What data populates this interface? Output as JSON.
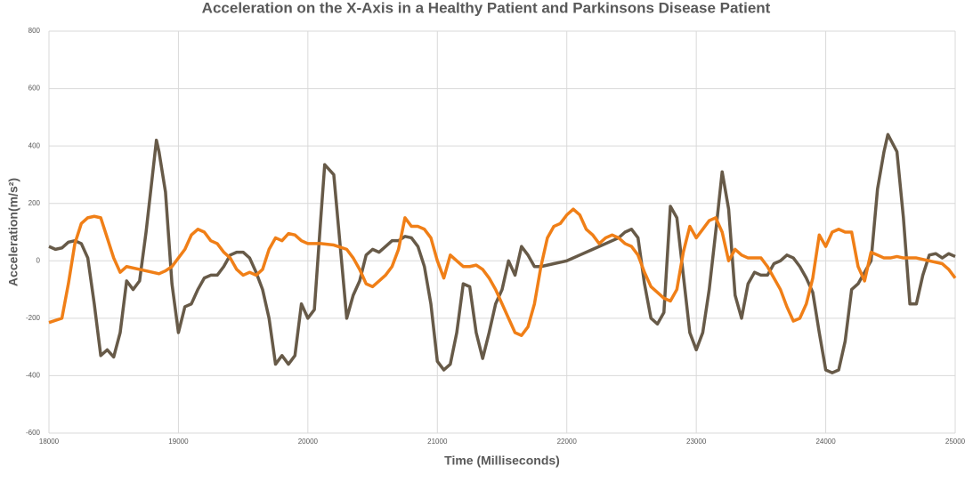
{
  "chart_data": {
    "type": "line",
    "title": "Acceleration on the X-Axis in a Healthy Patient and Parkinsons Disease Patient",
    "x_label": "Time (Milliseconds)",
    "y_label": "Acceleration(m/s²)",
    "xlim": [
      18000,
      25000
    ],
    "ylim": [
      -600,
      800
    ],
    "xticks": [
      18000,
      19000,
      20000,
      21000,
      22000,
      23000,
      24000,
      25000
    ],
    "yticks": [
      -600,
      -400,
      -200,
      0,
      200,
      400,
      600,
      800
    ],
    "grid": true,
    "series": [
      {
        "color": "#675a48",
        "x": [
          18000,
          18050,
          18100,
          18150,
          18200,
          18250,
          18300,
          18350,
          18400,
          18450,
          18500,
          18550,
          18600,
          18650,
          18700,
          18750,
          18800,
          18830,
          18850,
          18900,
          18950,
          19000,
          19050,
          19100,
          19150,
          19200,
          19250,
          19300,
          19350,
          19400,
          19450,
          19500,
          19550,
          19600,
          19650,
          19700,
          19750,
          19800,
          19850,
          19900,
          19950,
          20000,
          20050,
          20100,
          20130,
          20200,
          20250,
          20300,
          20350,
          20400,
          20450,
          20500,
          20550,
          20600,
          20650,
          20700,
          20750,
          20800,
          20850,
          20900,
          20950,
          21000,
          21050,
          21100,
          21150,
          21200,
          21250,
          21300,
          21350,
          21400,
          21450,
          21500,
          21550,
          21600,
          21650,
          21700,
          21750,
          21800,
          21850,
          21900,
          21950,
          22000,
          22100,
          22200,
          22300,
          22400,
          22450,
          22500,
          22550,
          22600,
          22650,
          22700,
          22750,
          22800,
          22850,
          22900,
          22950,
          23000,
          23050,
          23100,
          23150,
          23200,
          23250,
          23300,
          23350,
          23400,
          23450,
          23500,
          23550,
          23600,
          23650,
          23700,
          23750,
          23800,
          23850,
          23900,
          23950,
          24000,
          24050,
          24100,
          24150,
          24200,
          24250,
          24300,
          24350,
          24400,
          24450,
          24480,
          24550,
          24600,
          24650,
          24700,
          24750,
          24800,
          24850,
          24900,
          24950,
          25000
        ],
        "values": [
          50,
          40,
          45,
          65,
          70,
          60,
          10,
          -150,
          -330,
          -310,
          -335,
          -250,
          -70,
          -100,
          -70,
          100,
          300,
          420,
          380,
          240,
          -80,
          -250,
          -160,
          -150,
          -100,
          -60,
          -50,
          -50,
          -20,
          20,
          30,
          30,
          10,
          -40,
          -100,
          -200,
          -360,
          -330,
          -360,
          -330,
          -150,
          -200,
          -170,
          150,
          335,
          300,
          50,
          -200,
          -120,
          -70,
          20,
          40,
          30,
          50,
          70,
          70,
          85,
          80,
          50,
          -20,
          -150,
          -350,
          -380,
          -360,
          -250,
          -80,
          -90,
          -250,
          -340,
          -250,
          -150,
          -100,
          0,
          -50,
          50,
          20,
          -20,
          -20,
          -15,
          -10,
          -5,
          0,
          20,
          40,
          60,
          80,
          100,
          110,
          80,
          -80,
          -200,
          -220,
          -180,
          190,
          150,
          -50,
          -250,
          -310,
          -250,
          -100,
          100,
          310,
          180,
          -120,
          -200,
          -80,
          -40,
          -50,
          -50,
          -10,
          0,
          20,
          10,
          -20,
          -60,
          -110,
          -250,
          -380,
          -390,
          -380,
          -280,
          -100,
          -80,
          -40,
          0,
          250,
          380,
          440,
          380,
          150,
          -150,
          -150,
          -50,
          20,
          25,
          10,
          25,
          15
        ]
      },
      {
        "color": "#f07f17",
        "x": [
          18000,
          18100,
          18150,
          18200,
          18250,
          18300,
          18350,
          18400,
          18450,
          18500,
          18550,
          18600,
          18700,
          18800,
          18850,
          18900,
          18950,
          19000,
          19050,
          19100,
          19150,
          19200,
          19250,
          19300,
          19350,
          19400,
          19450,
          19500,
          19550,
          19600,
          19650,
          19700,
          19750,
          19800,
          19850,
          19900,
          19950,
          20000,
          20100,
          20200,
          20300,
          20350,
          20400,
          20450,
          20500,
          20550,
          20600,
          20650,
          20700,
          20750,
          20800,
          20850,
          20900,
          20950,
          21000,
          21050,
          21100,
          21150,
          21200,
          21250,
          21300,
          21350,
          21400,
          21450,
          21500,
          21550,
          21600,
          21650,
          21700,
          21750,
          21800,
          21850,
          21900,
          21950,
          22000,
          22050,
          22100,
          22150,
          22200,
          22250,
          22300,
          22350,
          22400,
          22450,
          22500,
          22550,
          22600,
          22650,
          22700,
          22750,
          22800,
          22850,
          22900,
          22950,
          23000,
          23050,
          23100,
          23150,
          23200,
          23250,
          23300,
          23350,
          23400,
          23450,
          23500,
          23550,
          23600,
          23650,
          23700,
          23750,
          23800,
          23850,
          23900,
          23950,
          24000,
          24050,
          24100,
          24150,
          24200,
          24250,
          24300,
          24350,
          24400,
          24450,
          24500,
          24550,
          24600,
          24700,
          24800,
          24900,
          24950,
          25000
        ],
        "values": [
          -215,
          -200,
          -80,
          60,
          130,
          150,
          155,
          150,
          80,
          10,
          -40,
          -20,
          -30,
          -40,
          -45,
          -35,
          -20,
          10,
          40,
          90,
          110,
          100,
          70,
          60,
          30,
          10,
          -30,
          -50,
          -40,
          -50,
          -30,
          40,
          80,
          70,
          95,
          90,
          70,
          60,
          60,
          55,
          40,
          10,
          -30,
          -80,
          -90,
          -70,
          -50,
          -20,
          40,
          150,
          120,
          120,
          110,
          80,
          0,
          -60,
          20,
          0,
          -20,
          -20,
          -15,
          -30,
          -60,
          -100,
          -150,
          -200,
          -250,
          -260,
          -230,
          -150,
          -20,
          80,
          120,
          130,
          160,
          180,
          160,
          110,
          90,
          60,
          80,
          90,
          80,
          60,
          50,
          20,
          -40,
          -90,
          -110,
          -130,
          -140,
          -100,
          30,
          120,
          80,
          110,
          140,
          150,
          100,
          0,
          40,
          20,
          10,
          10,
          10,
          -20,
          -60,
          -100,
          -160,
          -210,
          -200,
          -150,
          -60,
          90,
          50,
          100,
          110,
          100,
          100,
          -20,
          -70,
          30,
          20,
          10,
          10,
          15,
          10,
          10,
          0,
          -10,
          -30,
          -60
        ]
      }
    ]
  }
}
